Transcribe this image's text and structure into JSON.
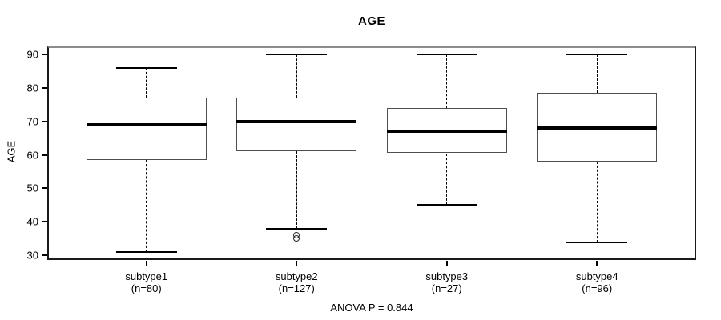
{
  "chart_data": {
    "type": "boxplot",
    "title": "AGE",
    "ylabel": "AGE",
    "footer": "ANOVA P = 0.844",
    "y_ticks": [
      30,
      40,
      50,
      60,
      70,
      80,
      90
    ],
    "y_range": [
      28.64,
      92.36
    ],
    "grid": false,
    "colors": {
      "box_fill": "#ffffff",
      "line": "#000000",
      "frame": "#8c8c8c"
    },
    "groups": [
      {
        "label": "subtype1",
        "n_label": "(n=80)",
        "low": 31,
        "q1": 58.5,
        "median": 69,
        "q3": 77,
        "high": 86,
        "outliers": []
      },
      {
        "label": "subtype2",
        "n_label": "(n=127)",
        "low": 38,
        "q1": 61,
        "median": 70,
        "q3": 77,
        "high": 90,
        "outliers": [
          36,
          35
        ]
      },
      {
        "label": "subtype3",
        "n_label": "(n=27)",
        "low": 45,
        "q1": 60.5,
        "median": 67,
        "q3": 74,
        "high": 90,
        "outliers": []
      },
      {
        "label": "subtype4",
        "n_label": "(n=96)",
        "low": 34,
        "q1": 58,
        "median": 68,
        "q3": 78.5,
        "high": 90,
        "outliers": []
      }
    ]
  }
}
